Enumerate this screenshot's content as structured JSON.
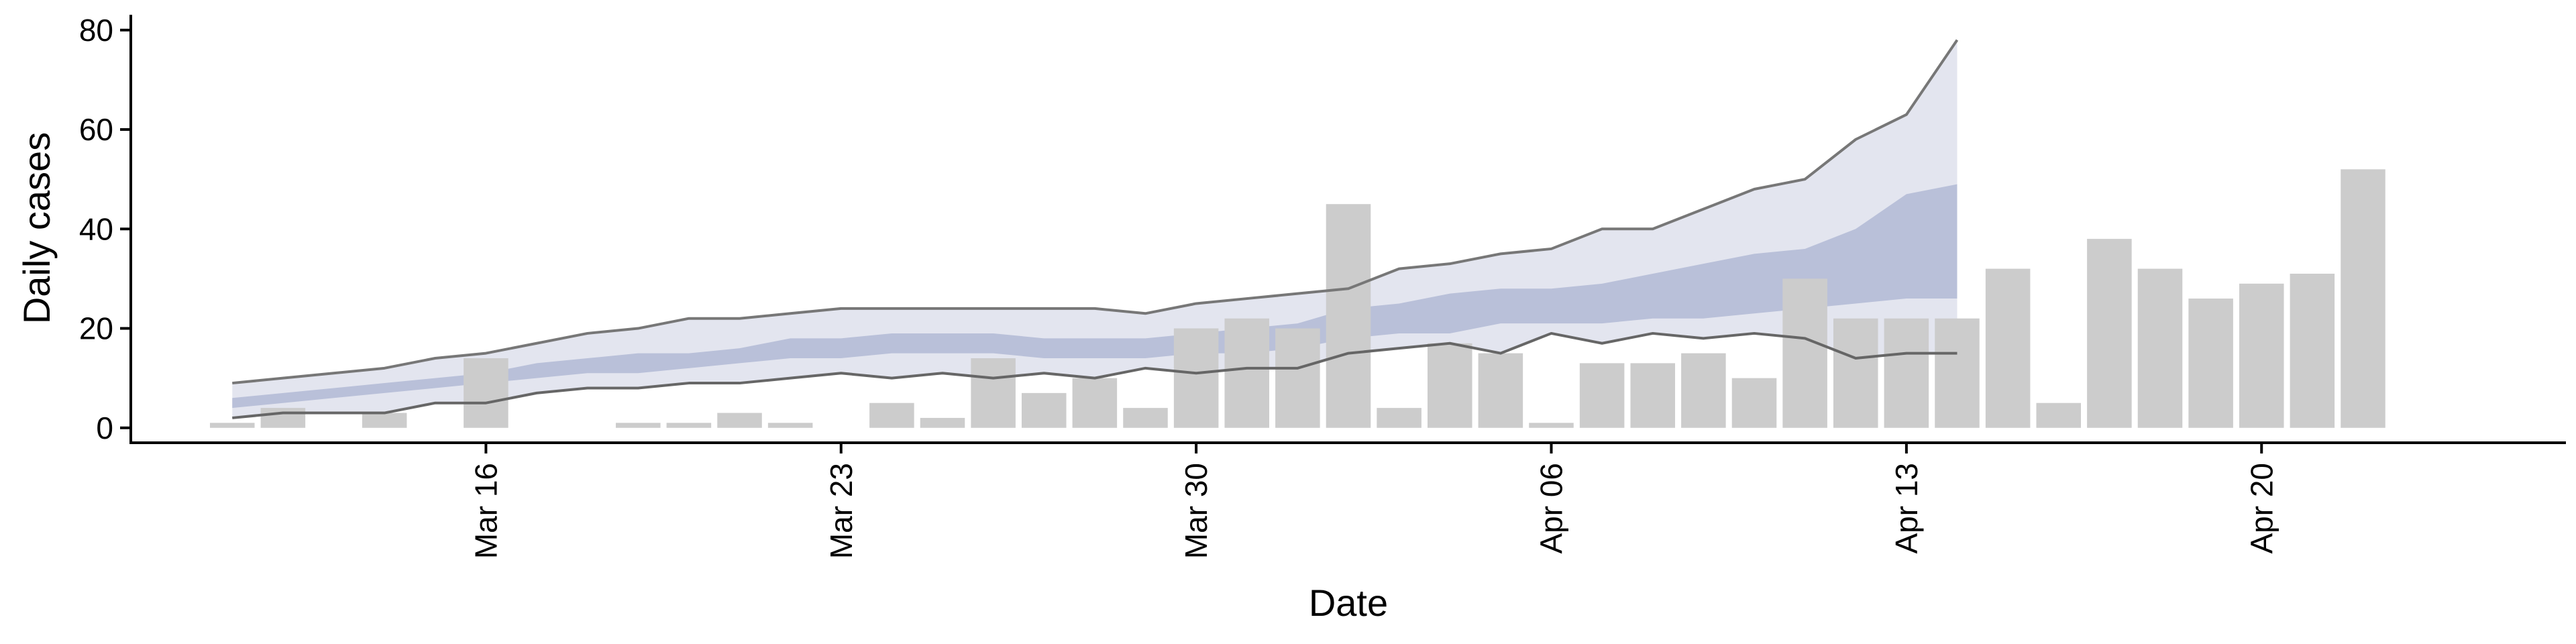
{
  "chart_data": {
    "type": "bar",
    "xlabel": "Date",
    "ylabel": "Daily cases",
    "ylim": [
      -3,
      82
    ],
    "y_ticks": [
      0,
      20,
      40,
      60,
      80
    ],
    "xlim": [
      "2020-03-09",
      "2020-04-26"
    ],
    "x_ticks": [
      {
        "date": "2020-03-16",
        "label": "Mar 16"
      },
      {
        "date": "2020-03-23",
        "label": "Mar 23"
      },
      {
        "date": "2020-03-30",
        "label": "Mar 30"
      },
      {
        "date": "2020-04-06",
        "label": "Apr 06"
      },
      {
        "date": "2020-04-13",
        "label": "Apr 13"
      },
      {
        "date": "2020-04-20",
        "label": "Apr 20"
      }
    ],
    "grid": false,
    "colors": {
      "bars": "#cccccc",
      "band_outer": "#e3e5ef",
      "band_inner": "#b9c0d9",
      "line_lower": "#666666",
      "line_upper": "#777777"
    },
    "observed_cases": {
      "dates": [
        "2020-03-11",
        "2020-03-12",
        "2020-03-13",
        "2020-03-14",
        "2020-03-15",
        "2020-03-16",
        "2020-03-17",
        "2020-03-18",
        "2020-03-19",
        "2020-03-20",
        "2020-03-21",
        "2020-03-22",
        "2020-03-23",
        "2020-03-24",
        "2020-03-25",
        "2020-03-26",
        "2020-03-27",
        "2020-03-28",
        "2020-03-29",
        "2020-03-30",
        "2020-03-31",
        "2020-04-01",
        "2020-04-02",
        "2020-04-03",
        "2020-04-04",
        "2020-04-05",
        "2020-04-06",
        "2020-04-07",
        "2020-04-08",
        "2020-04-09",
        "2020-04-10",
        "2020-04-11",
        "2020-04-12",
        "2020-04-13",
        "2020-04-14",
        "2020-04-15",
        "2020-04-16",
        "2020-04-17",
        "2020-04-18",
        "2020-04-19",
        "2020-04-20",
        "2020-04-21",
        "2020-04-22",
        "2020-04-23",
        "2020-04-24",
        "2020-04-25"
      ],
      "values": [
        1,
        4,
        0,
        3,
        0,
        14,
        0,
        0,
        1,
        1,
        3,
        1,
        0,
        5,
        2,
        14,
        7,
        10,
        4,
        20,
        22,
        20,
        45,
        4,
        17,
        15,
        1,
        13,
        13,
        15,
        10,
        30,
        22,
        22,
        22,
        32,
        5,
        38,
        32,
        26,
        29,
        31,
        52,
        0,
        0,
        0
      ]
    },
    "estimate": {
      "dates": [
        "2020-03-11",
        "2020-03-12",
        "2020-03-13",
        "2020-03-14",
        "2020-03-15",
        "2020-03-16",
        "2020-03-17",
        "2020-03-18",
        "2020-03-19",
        "2020-03-20",
        "2020-03-21",
        "2020-03-22",
        "2020-03-23",
        "2020-03-24",
        "2020-03-25",
        "2020-03-26",
        "2020-03-27",
        "2020-03-28",
        "2020-03-29",
        "2020-03-30",
        "2020-03-31",
        "2020-04-01",
        "2020-04-02",
        "2020-04-03",
        "2020-04-04",
        "2020-04-05",
        "2020-04-06",
        "2020-04-07",
        "2020-04-08",
        "2020-04-09",
        "2020-04-10",
        "2020-04-11",
        "2020-04-12",
        "2020-04-13",
        "2020-04-14"
      ],
      "lower_90": [
        2,
        3,
        3,
        3,
        5,
        5,
        7,
        8,
        8,
        9,
        9,
        10,
        11,
        10,
        11,
        10,
        11,
        10,
        12,
        11,
        12,
        12,
        15,
        16,
        17,
        15,
        19,
        17,
        19,
        18,
        19,
        18,
        14,
        15,
        15
      ],
      "lower_50": [
        4,
        5,
        6,
        7,
        8,
        9,
        10,
        11,
        11,
        12,
        13,
        14,
        14,
        15,
        15,
        15,
        14,
        14,
        14,
        15,
        15,
        16,
        18,
        19,
        19,
        21,
        21,
        21,
        22,
        22,
        23,
        24,
        25,
        26,
        26
      ],
      "upper_50": [
        6,
        7,
        8,
        9,
        10,
        11,
        13,
        14,
        15,
        15,
        16,
        18,
        18,
        19,
        19,
        19,
        18,
        18,
        18,
        19,
        20,
        21,
        24,
        25,
        27,
        28,
        28,
        29,
        31,
        33,
        35,
        36,
        40,
        47,
        49
      ],
      "upper_90": [
        9,
        10,
        11,
        12,
        14,
        15,
        17,
        19,
        20,
        22,
        22,
        23,
        24,
        24,
        24,
        24,
        24,
        24,
        23,
        25,
        26,
        27,
        28,
        32,
        33,
        35,
        36,
        40,
        40,
        44,
        48,
        50,
        58,
        63,
        78
      ]
    }
  }
}
